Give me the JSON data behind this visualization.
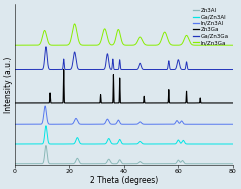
{
  "xlabel": "2 Theta (degrees)",
  "ylabel": "Intensity (a.u.)",
  "xlim": [
    0,
    80
  ],
  "legend_entries": [
    "Zn3Al",
    "Ga/Zn3Al",
    "In/Zn3Al",
    "Zn3Ga",
    "Ga/Zn3Ga",
    "In/Zn3Ga"
  ],
  "colors": [
    "#8ab8b8",
    "#00e5e5",
    "#5577ee",
    "#000000",
    "#2233bb",
    "#88ee00"
  ],
  "background_color": "#dde8ee",
  "fontsize": 5.5
}
